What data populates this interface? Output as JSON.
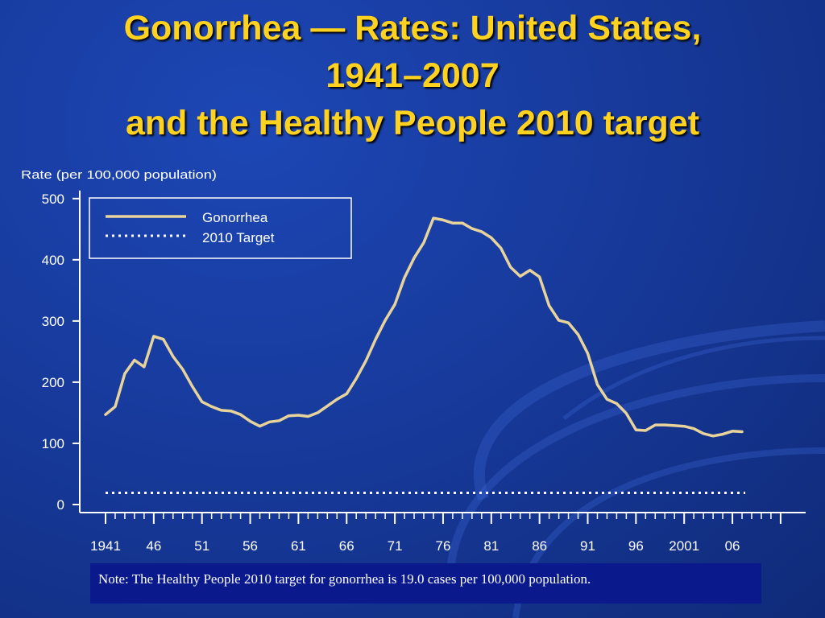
{
  "title": {
    "line1": "Gonorrhea — Rates: United States,",
    "line2": "1941–2007",
    "line3": "and the Healthy People 2010 target"
  },
  "note": "Note: The Healthy People 2010 target for gonorrhea is 19.0 cases per 100,000 population.",
  "colors": {
    "background": "#173a9c",
    "title": "#ffd21f",
    "series_line": "#e8d49a",
    "target_line": "#ffffff",
    "note_box": "#0a1a8c"
  },
  "chart_data": {
    "type": "line",
    "ylabel": "Rate (per 100,000 population)",
    "xlabel": "",
    "ylim": [
      0,
      500
    ],
    "yticks": [
      0,
      100,
      200,
      300,
      400,
      500
    ],
    "xlim": [
      1941,
      2011
    ],
    "xtick_labels": [
      {
        "x": 1941,
        "label": "1941"
      },
      {
        "x": 1946,
        "label": "46"
      },
      {
        "x": 1951,
        "label": "51"
      },
      {
        "x": 1956,
        "label": "56"
      },
      {
        "x": 1961,
        "label": "61"
      },
      {
        "x": 1966,
        "label": "66"
      },
      {
        "x": 1971,
        "label": "71"
      },
      {
        "x": 1976,
        "label": "76"
      },
      {
        "x": 1981,
        "label": "81"
      },
      {
        "x": 1986,
        "label": "86"
      },
      {
        "x": 1991,
        "label": "91"
      },
      {
        "x": 1996,
        "label": "96"
      },
      {
        "x": 2001,
        "label": "2001"
      },
      {
        "x": 2006,
        "label": "06"
      }
    ],
    "legend": {
      "placement": "top-left",
      "entries": [
        {
          "label": "Gonorrhea",
          "style": "solid"
        },
        {
          "label": "2010 Target",
          "style": "dotted"
        }
      ]
    },
    "series": [
      {
        "name": "Gonorrhea",
        "x": [
          1941,
          1942,
          1943,
          1944,
          1945,
          1946,
          1947,
          1948,
          1949,
          1950,
          1951,
          1952,
          1953,
          1954,
          1955,
          1956,
          1957,
          1958,
          1959,
          1960,
          1961,
          1962,
          1963,
          1964,
          1965,
          1966,
          1967,
          1968,
          1969,
          1970,
          1971,
          1972,
          1973,
          1974,
          1975,
          1976,
          1977,
          1978,
          1979,
          1980,
          1981,
          1982,
          1983,
          1984,
          1985,
          1986,
          1987,
          1988,
          1989,
          1990,
          1991,
          1992,
          1993,
          1994,
          1995,
          1996,
          1997,
          1998,
          1999,
          2000,
          2001,
          2002,
          2003,
          2004,
          2005,
          2006,
          2007
        ],
        "values": [
          147,
          160,
          214,
          236,
          225,
          275,
          270,
          242,
          221,
          193,
          168,
          160,
          154,
          153,
          147,
          136,
          128,
          135,
          137,
          145,
          146,
          144,
          150,
          161,
          172,
          181,
          206,
          235,
          270,
          301,
          327,
          371,
          403,
          428,
          468,
          465,
          460,
          460,
          451,
          446,
          436,
          419,
          388,
          373,
          383,
          372,
          325,
          301,
          297,
          278,
          247,
          196,
          172,
          165,
          149,
          122,
          121,
          130,
          130,
          129,
          128,
          124,
          116,
          112,
          115,
          120,
          119
        ]
      },
      {
        "name": "2010 Target",
        "x": [
          1941,
          2007
        ],
        "values": [
          19,
          19
        ]
      }
    ]
  }
}
